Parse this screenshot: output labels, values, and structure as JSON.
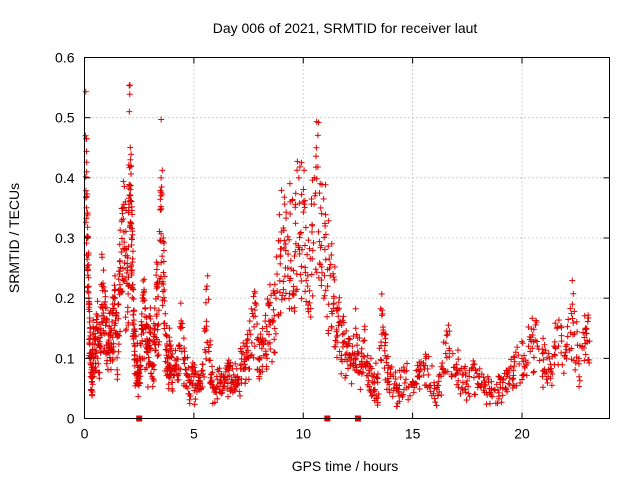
{
  "chart_data": {
    "type": "scatter",
    "title": "Day 006 of 2021, SRMTID for receiver laut",
    "xlabel": "GPS time / hours",
    "ylabel": "SRMTID / TECUs",
    "xlim": [
      0,
      24
    ],
    "ylim": [
      0,
      0.6
    ],
    "xticks": [
      0,
      5,
      10,
      15,
      20
    ],
    "xtick_labels": [
      "0",
      "5",
      "10",
      "15",
      "20"
    ],
    "yticks": [
      0,
      0.1,
      0.2,
      0.3,
      0.4,
      0.5,
      0.6
    ],
    "ytick_labels": [
      "0",
      "0.1",
      "0.2",
      "0.3",
      "0.4",
      "0.5",
      "0.6"
    ],
    "grid": true,
    "marker": "+",
    "point_color": "#e00000",
    "gap_marker_color": "#e00000",
    "gap_markers_x": [
      2.5,
      11.1,
      12.5
    ],
    "series": [
      {
        "name": "SRMTID",
        "x": [
          0.05,
          0.1,
          0.15,
          0.2,
          0.25,
          0.3,
          0.35,
          0.4,
          0.5,
          0.6,
          0.7,
          0.8,
          0.9,
          1.0,
          1.1,
          1.2,
          1.3,
          1.4,
          1.5,
          1.6,
          1.7,
          1.8,
          1.9,
          2.0,
          2.05,
          2.1,
          2.15,
          2.2,
          2.25,
          2.3,
          2.4,
          2.5,
          2.6,
          2.7,
          2.8,
          2.9,
          3.0,
          3.1,
          3.2,
          3.3,
          3.4,
          3.5,
          3.6,
          3.7,
          3.8,
          3.9,
          4.0,
          4.2,
          4.4,
          4.6,
          4.8,
          5.0,
          5.2,
          5.4,
          5.6,
          5.8,
          6.0,
          6.2,
          6.4,
          6.6,
          6.8,
          7.0,
          7.2,
          7.4,
          7.6,
          7.8,
          8.0,
          8.2,
          8.4,
          8.6,
          8.8,
          9.0,
          9.2,
          9.4,
          9.6,
          9.8,
          10.0,
          10.2,
          10.4,
          10.6,
          10.8,
          11.0,
          11.2,
          11.4,
          11.6,
          11.8,
          12.0,
          12.2,
          12.4,
          12.6,
          12.8,
          13.0,
          13.2,
          13.4,
          13.6,
          13.8,
          14.0,
          14.3,
          14.6,
          15.0,
          15.3,
          15.6,
          16.0,
          16.3,
          16.6,
          17.0,
          17.3,
          17.6,
          18.0,
          18.3,
          18.6,
          19.0,
          19.3,
          19.6,
          20.0,
          20.3,
          20.6,
          21.0,
          21.3,
          21.6,
          22.0,
          22.3,
          22.6,
          22.9
        ],
        "y": [
          0.47,
          0.41,
          0.3,
          0.2,
          0.15,
          0.09,
          0.07,
          0.14,
          0.13,
          0.17,
          0.12,
          0.22,
          0.19,
          0.16,
          0.11,
          0.15,
          0.18,
          0.2,
          0.14,
          0.24,
          0.33,
          0.31,
          0.28,
          0.22,
          0.51,
          0.43,
          0.3,
          0.26,
          0.18,
          0.12,
          0.1,
          0.07,
          0.14,
          0.2,
          0.15,
          0.11,
          0.17,
          0.09,
          0.14,
          0.22,
          0.18,
          0.4,
          0.3,
          0.14,
          0.1,
          0.12,
          0.08,
          0.09,
          0.15,
          0.1,
          0.06,
          0.07,
          0.05,
          0.08,
          0.22,
          0.06,
          0.05,
          0.07,
          0.06,
          0.08,
          0.06,
          0.07,
          0.09,
          0.11,
          0.14,
          0.17,
          0.1,
          0.13,
          0.19,
          0.16,
          0.24,
          0.31,
          0.29,
          0.34,
          0.27,
          0.4,
          0.36,
          0.22,
          0.31,
          0.45,
          0.35,
          0.32,
          0.25,
          0.2,
          0.17,
          0.14,
          0.12,
          0.1,
          0.15,
          0.09,
          0.13,
          0.08,
          0.07,
          0.06,
          0.18,
          0.1,
          0.07,
          0.05,
          0.08,
          0.06,
          0.07,
          0.1,
          0.05,
          0.07,
          0.14,
          0.09,
          0.06,
          0.08,
          0.07,
          0.06,
          0.05,
          0.06,
          0.07,
          0.08,
          0.1,
          0.12,
          0.13,
          0.11,
          0.09,
          0.15,
          0.12,
          0.19,
          0.1,
          0.15
        ]
      }
    ]
  }
}
